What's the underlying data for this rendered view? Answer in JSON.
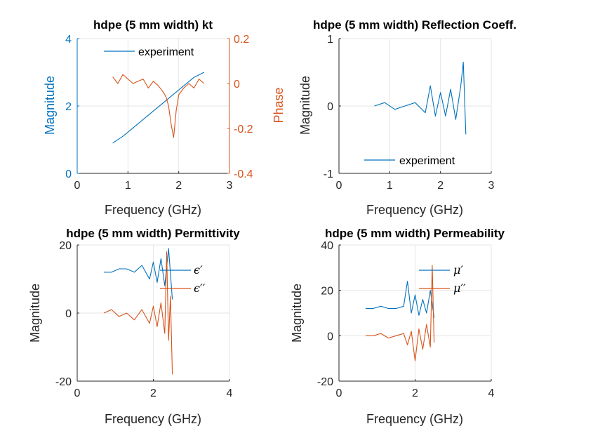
{
  "colors": {
    "blue": "#0072BD",
    "orange": "#D95319",
    "grid": "#e6e6e6",
    "axis": "#262626"
  },
  "chart_data": [
    {
      "type": "line",
      "title": "hdpe (5 mm width) kt",
      "xlabel": "Frequency (GHz)",
      "ylabel": "Magnitude",
      "ylabel_right": "Phase",
      "xlim": [
        0,
        3
      ],
      "ylim": [
        0,
        4
      ],
      "ylim_right": [
        -0.4,
        0.2
      ],
      "xticks": [
        "0",
        "1",
        "2",
        "3"
      ],
      "yticks": [
        "0",
        "2",
        "4"
      ],
      "yticks_right": [
        "-0.4",
        "-0.2",
        "0",
        "0.2"
      ],
      "grid": true,
      "legend": [
        "experiment"
      ],
      "legend_position": "top",
      "series": [
        {
          "name": "experiment",
          "axis": "left",
          "color": "#0072BD",
          "x": [
            0.7,
            0.9,
            1.1,
            1.3,
            1.5,
            1.7,
            1.9,
            2.1,
            2.3,
            2.5
          ],
          "y": [
            0.9,
            1.1,
            1.35,
            1.6,
            1.85,
            2.1,
            2.35,
            2.6,
            2.85,
            3.0
          ]
        },
        {
          "axis": "right",
          "color": "#D95319",
          "x": [
            0.7,
            0.8,
            0.9,
            1.0,
            1.1,
            1.2,
            1.3,
            1.4,
            1.5,
            1.6,
            1.7,
            1.75,
            1.8,
            1.85,
            1.9,
            1.95,
            2.0,
            2.1,
            2.2,
            2.3,
            2.4,
            2.5
          ],
          "y": [
            0.03,
            0.0,
            0.04,
            0.02,
            0.0,
            0.01,
            0.02,
            -0.02,
            0.01,
            -0.01,
            -0.04,
            -0.06,
            -0.1,
            -0.18,
            -0.24,
            -0.12,
            -0.05,
            -0.02,
            0.0,
            -0.02,
            0.02,
            0.0
          ]
        }
      ]
    },
    {
      "type": "line",
      "title": "hdpe (5 mm width) Reflection Coeff.",
      "xlabel": "Frequency (GHz)",
      "ylabel": "Magnitude",
      "xlim": [
        0,
        3
      ],
      "ylim": [
        -1,
        1
      ],
      "xticks": [
        "0",
        "1",
        "2",
        "3"
      ],
      "yticks": [
        "-1",
        "0",
        "1"
      ],
      "grid": true,
      "legend": [
        "experiment"
      ],
      "legend_position": "bottom",
      "series": [
        {
          "name": "experiment",
          "color": "#0072BD",
          "x": [
            0.7,
            0.9,
            1.1,
            1.3,
            1.5,
            1.7,
            1.8,
            1.9,
            2.0,
            2.1,
            2.2,
            2.3,
            2.4,
            2.45,
            2.5
          ],
          "y": [
            0.0,
            0.05,
            -0.05,
            0.0,
            0.05,
            -0.1,
            0.3,
            -0.15,
            0.2,
            -0.15,
            0.25,
            -0.2,
            0.3,
            0.65,
            -0.42
          ]
        }
      ]
    },
    {
      "type": "line",
      "title": "hdpe (5 mm width) Permittivity",
      "xlabel": "Frequency (GHz)",
      "ylabel": "Magnitude",
      "xlim": [
        0,
        4
      ],
      "ylim": [
        -20,
        20
      ],
      "xticks": [
        "0",
        "2",
        "4"
      ],
      "yticks": [
        "-20",
        "0",
        "20"
      ],
      "grid": true,
      "legend": [
        "ϵ′",
        "ϵ′′"
      ],
      "legend_position": "top-right",
      "series": [
        {
          "name": "ϵ′",
          "color": "#0072BD",
          "x": [
            0.7,
            0.9,
            1.1,
            1.3,
            1.5,
            1.7,
            1.9,
            2.0,
            2.1,
            2.2,
            2.3,
            2.4,
            2.5
          ],
          "y": [
            12,
            12,
            13,
            13,
            12,
            14,
            10,
            15,
            9,
            16,
            8,
            19,
            4
          ]
        },
        {
          "name": "ϵ′′",
          "color": "#D95319",
          "x": [
            0.7,
            0.9,
            1.1,
            1.3,
            1.5,
            1.7,
            1.9,
            2.0,
            2.1,
            2.2,
            2.3,
            2.35,
            2.4,
            2.45,
            2.5
          ],
          "y": [
            0,
            1,
            -1,
            0,
            -2,
            1,
            -3,
            2,
            -4,
            3,
            -6,
            18,
            -8,
            5,
            -18
          ]
        }
      ]
    },
    {
      "type": "line",
      "title": "hdpe (5 mm width) Permeability",
      "xlabel": "Frequency (GHz)",
      "ylabel": "Magnitude",
      "xlim": [
        0,
        4
      ],
      "ylim": [
        -20,
        40
      ],
      "xticks": [
        "0",
        "2",
        "4"
      ],
      "yticks": [
        "-20",
        "0",
        "20",
        "40"
      ],
      "grid": true,
      "legend": [
        "μ′",
        "μ′′"
      ],
      "legend_position": "top-right",
      "series": [
        {
          "name": "μ′",
          "color": "#0072BD",
          "x": [
            0.7,
            0.9,
            1.1,
            1.3,
            1.5,
            1.7,
            1.8,
            1.9,
            2.0,
            2.1,
            2.2,
            2.3,
            2.4,
            2.5
          ],
          "y": [
            12,
            12,
            13,
            12,
            12,
            13,
            24,
            10,
            18,
            9,
            16,
            10,
            20,
            8
          ]
        },
        {
          "name": "μ′′",
          "color": "#D95319",
          "x": [
            0.7,
            0.9,
            1.1,
            1.3,
            1.5,
            1.7,
            1.8,
            1.9,
            2.0,
            2.1,
            2.2,
            2.3,
            2.4,
            2.45,
            2.5
          ],
          "y": [
            0,
            0,
            1,
            -1,
            0,
            1,
            -4,
            2,
            -11,
            3,
            -6,
            5,
            -5,
            31,
            -3
          ]
        }
      ]
    }
  ]
}
